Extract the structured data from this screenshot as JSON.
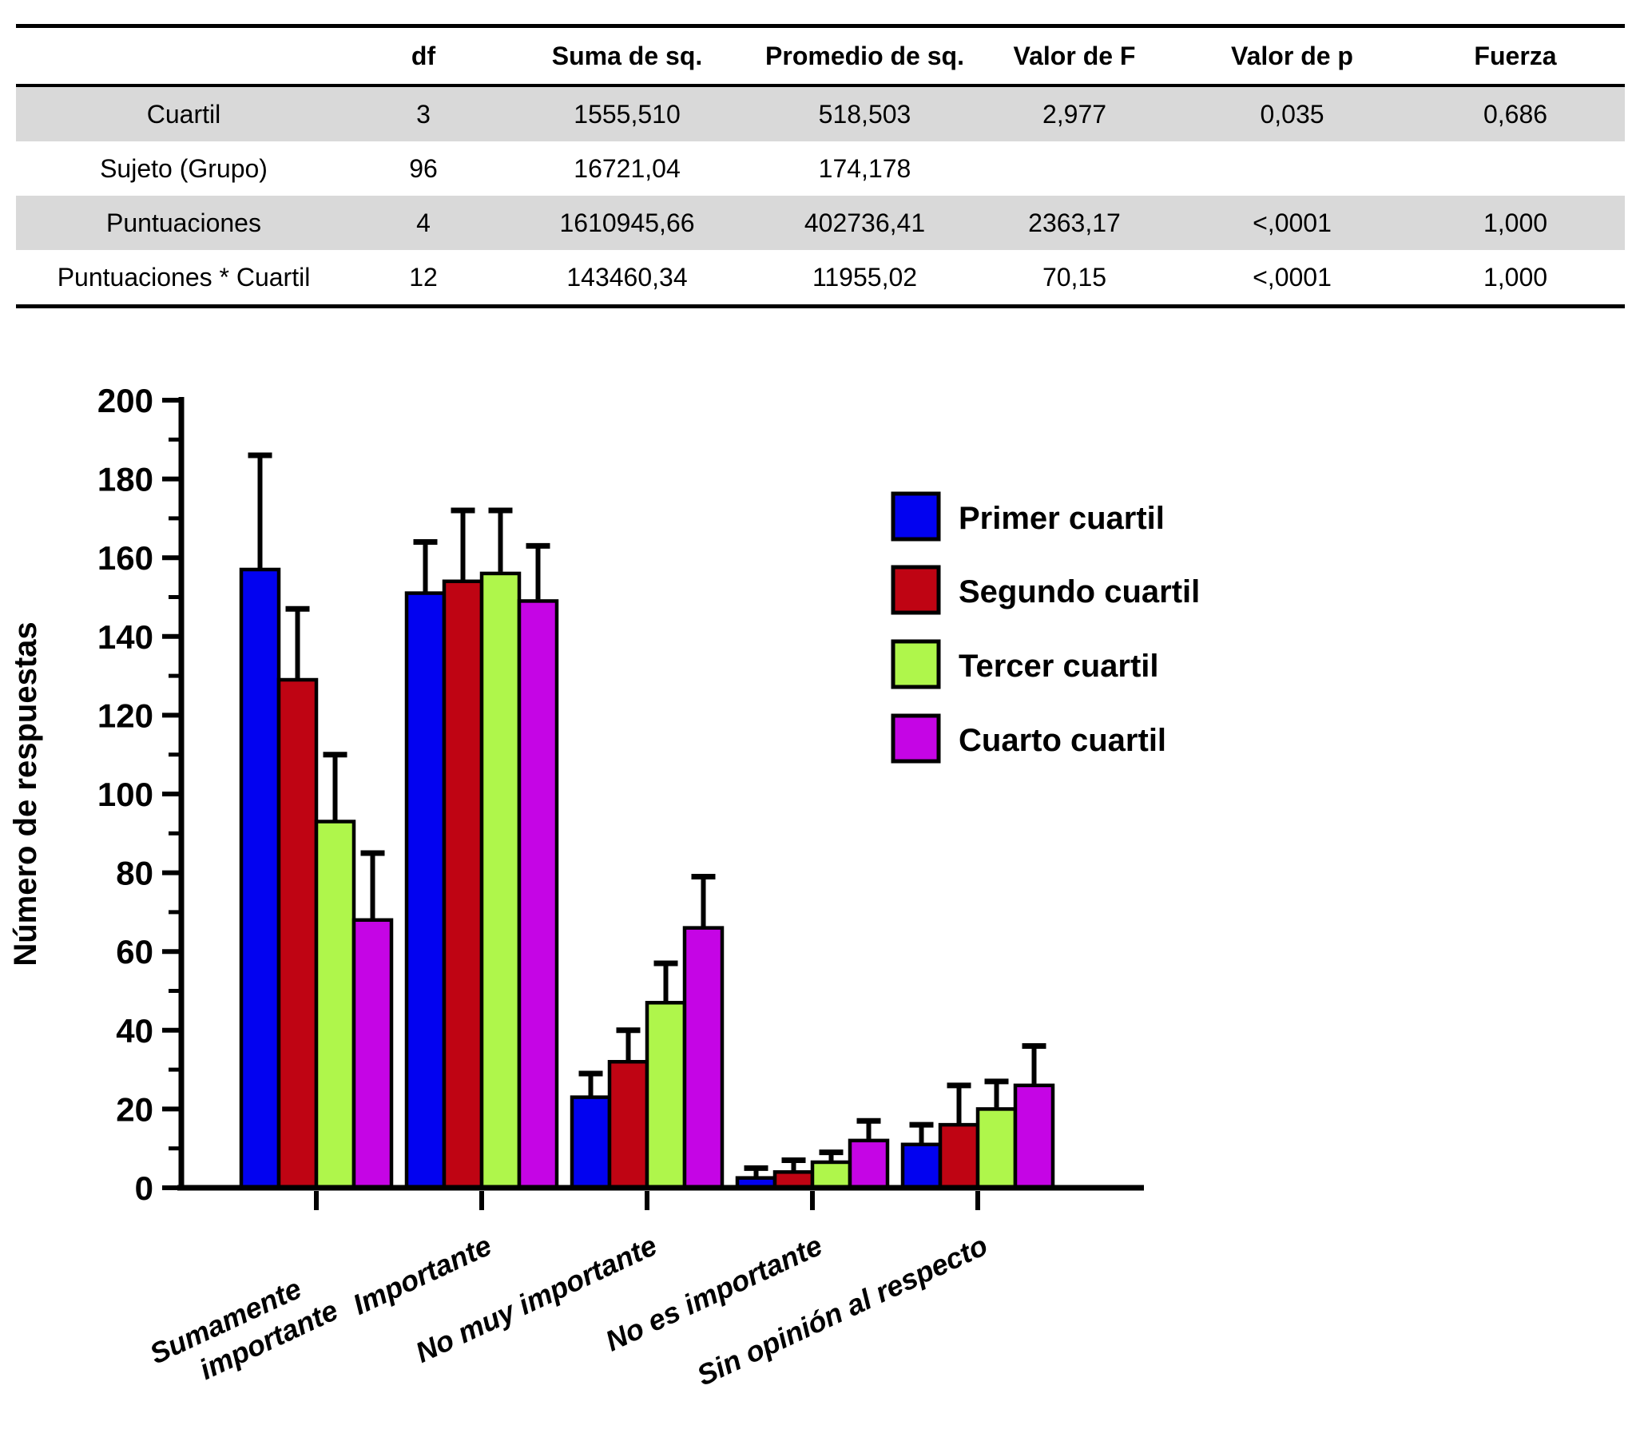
{
  "table": {
    "headers": [
      "",
      "df",
      "Suma de sq.",
      "Promedio de sq.",
      "Valor de F",
      "Valor de p",
      "Fuerza"
    ],
    "rows": [
      {
        "label": "Cuartil",
        "values": [
          "3",
          "1555,510",
          "518,503",
          "2,977",
          "0,035",
          "0,686"
        ]
      },
      {
        "label": "Sujeto (Grupo)",
        "values": [
          "96",
          "16721,04",
          "174,178",
          "",
          "",
          ""
        ]
      },
      {
        "label": "Puntuaciones",
        "values": [
          "4",
          "1610945,66",
          "402736,41",
          "2363,17",
          "<,0001",
          "1,000"
        ]
      },
      {
        "label": "Puntuaciones * Cuartil",
        "values": [
          "12",
          "143460,34",
          "11955,02",
          "70,15",
          "<,0001",
          "1,000"
        ]
      }
    ],
    "shaded_row_indexes": [
      0,
      2
    ],
    "shade_color": "#d9d9d9"
  },
  "chart_data": {
    "type": "bar",
    "title": "",
    "xlabel": "",
    "ylabel": "Número de respuestas",
    "ylim": [
      0,
      200
    ],
    "ytick_major_step": 20,
    "ytick_minor_step": 10,
    "grid": false,
    "legend_position": "upper-right-inside",
    "error_bars": "upper-only",
    "categories": [
      "Sumamente\nimportante",
      "Importante",
      "No muy importante",
      "No es importante",
      "Sin opinión al respecto"
    ],
    "series": [
      {
        "name": "Primer cuartil",
        "color": "#0202f0",
        "values": [
          157,
          151,
          23,
          2.5,
          11
        ],
        "upper_errors": [
          29,
          13,
          6,
          2.5,
          5
        ]
      },
      {
        "name": "Segundo cuartil",
        "color": "#bf0413",
        "values": [
          129,
          154,
          32,
          4,
          16
        ],
        "upper_errors": [
          18,
          18,
          8,
          3,
          10
        ]
      },
      {
        "name": "Tercer cuartil",
        "color": "#aff64b",
        "values": [
          93,
          156,
          47,
          6.5,
          20
        ],
        "upper_errors": [
          17,
          16,
          10,
          2.5,
          7
        ]
      },
      {
        "name": "Cuarto cuartil",
        "color": "#c505e5",
        "values": [
          68,
          149,
          66,
          12,
          26
        ],
        "upper_errors": [
          17,
          14,
          13,
          5,
          10
        ]
      }
    ],
    "axis_color": "#000000",
    "bar_outline_color": "#000000"
  }
}
